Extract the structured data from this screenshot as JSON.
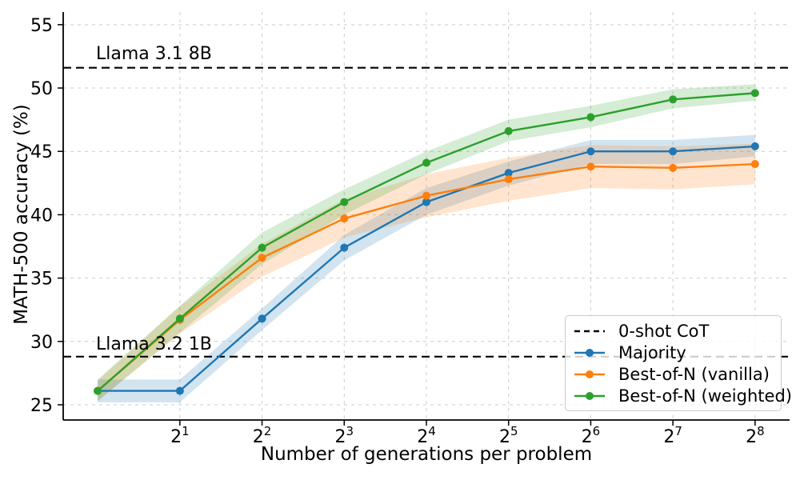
{
  "figure": {
    "background": "#ffffff"
  },
  "chart_data": {
    "type": "line",
    "title": "",
    "xlabel": "Number of generations per problem",
    "ylabel": "MATH-500 accuracy (%)",
    "x_scale": "log2",
    "x": [
      1,
      2,
      4,
      8,
      16,
      32,
      64,
      128,
      256
    ],
    "xtick_base": "2",
    "xtick_exponents": [
      1,
      2,
      3,
      4,
      5,
      6,
      7,
      8
    ],
    "yticks": [
      25,
      30,
      35,
      40,
      45,
      50,
      55
    ],
    "ylim": [
      23.8,
      56.0
    ],
    "xlim_log2": [
      -0.42,
      8.42
    ],
    "grid": true,
    "grid_color": "#cccccc",
    "axis_color": "#000000",
    "series": [
      {
        "name": "Majority",
        "color": "#1f77b4",
        "values": [
          26.1,
          26.1,
          31.8,
          37.4,
          41.0,
          43.3,
          45.0,
          45.0,
          45.4
        ],
        "band_lo": [
          25.2,
          25.2,
          30.9,
          36.4,
          40.0,
          42.3,
          44.0,
          44.0,
          44.6
        ],
        "band_hi": [
          27.0,
          27.0,
          32.6,
          38.4,
          42.1,
          44.2,
          45.9,
          45.9,
          46.3
        ]
      },
      {
        "name": "Best-of-N (vanilla)",
        "color": "#ff7f0e",
        "values": [
          26.1,
          31.7,
          36.6,
          39.7,
          41.5,
          42.8,
          43.8,
          43.7,
          44.0
        ],
        "band_lo": [
          25.3,
          30.6,
          35.1,
          38.2,
          39.8,
          41.1,
          42.1,
          42.0,
          42.4
        ],
        "band_hi": [
          26.9,
          32.8,
          37.7,
          41.2,
          43.2,
          44.5,
          45.5,
          45.4,
          45.6
        ]
      },
      {
        "name": "Best-of-N (weighted)",
        "color": "#2ca02c",
        "values": [
          26.1,
          31.8,
          37.4,
          41.0,
          44.1,
          46.6,
          47.7,
          49.1,
          49.6
        ],
        "band_lo": [
          25.3,
          30.7,
          36.1,
          40.0,
          43.2,
          45.8,
          46.9,
          48.4,
          49.0
        ],
        "band_hi": [
          27.0,
          32.8,
          38.6,
          42.0,
          45.0,
          47.5,
          48.6,
          49.9,
          50.3
        ]
      }
    ],
    "baselines": [
      {
        "label": "Llama 3.1 8B",
        "value": 51.6,
        "color": "#000000",
        "style": "dashed"
      },
      {
        "label": "Llama 3.2 1B",
        "value": 28.8,
        "color": "#000000",
        "style": "dashed"
      }
    ],
    "legend": {
      "position": "lower-right",
      "entries": [
        {
          "label": "0-shot CoT",
          "color": "#000000",
          "line_style": "dashed",
          "marker": false
        },
        {
          "label": "Majority",
          "color": "#1f77b4",
          "line_style": "solid",
          "marker": true
        },
        {
          "label": "Best-of-N (vanilla)",
          "color": "#ff7f0e",
          "line_style": "solid",
          "marker": true
        },
        {
          "label": "Best-of-N (weighted)",
          "color": "#2ca02c",
          "line_style": "solid",
          "marker": true
        }
      ]
    }
  }
}
